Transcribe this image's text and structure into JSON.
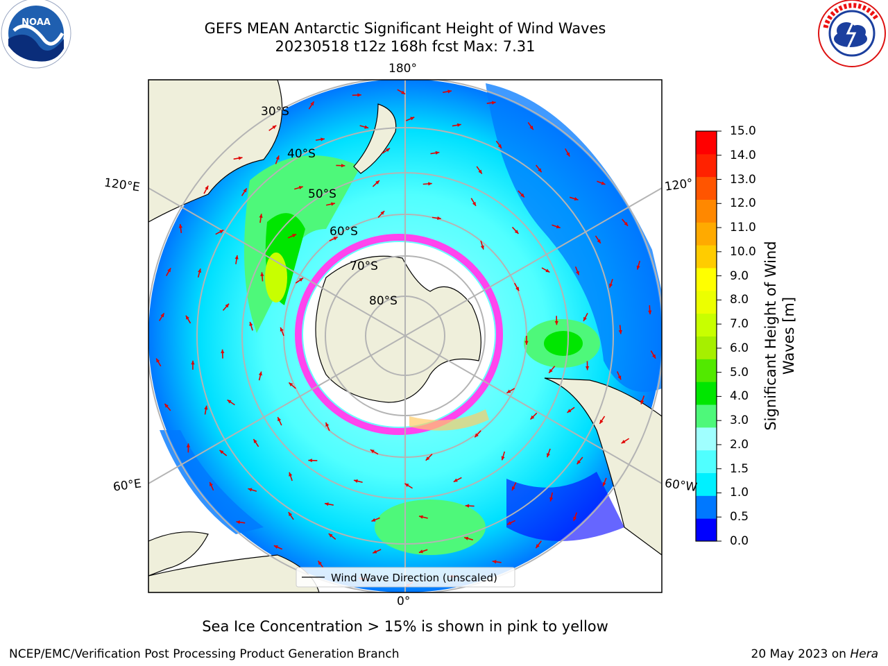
{
  "title": {
    "line1": "GEFS MEAN Antarctic Significant Height of Wind Waves",
    "line2": "20230518 t12z 168h fcst   Max: 7.31"
  },
  "logos": {
    "left": "noaa-logo",
    "right": "nws-logo"
  },
  "map": {
    "projection": "south-polar-stereographic",
    "lat_labels": [
      "30°S",
      "40°S",
      "50°S",
      "60°S",
      "70°S",
      "80°S"
    ],
    "lon_labels": {
      "top": "180°",
      "bottom": "0°",
      "upper_left": "120°E",
      "lower_left": "60°E",
      "upper_right": "120°",
      "lower_right": "60°W"
    },
    "legend_label": "Wind Wave Direction (unscaled)"
  },
  "colorbar": {
    "label_line1": "Significant Height of Wind",
    "label_line2": "Waves [m]",
    "ticks": [
      "15.0",
      "14.0",
      "13.0",
      "12.0",
      "11.0",
      "10.0",
      "9.0",
      "8.0",
      "7.0",
      "6.0",
      "5.0",
      "4.0",
      "3.0",
      "2.0",
      "1.5",
      "1.0",
      "0.5",
      "0.0"
    ],
    "colors": [
      "#0000ff",
      "#0078ff",
      "#00f0ff",
      "#50ffff",
      "#a0ffff",
      "#4ef87a",
      "#00e600",
      "#52e900",
      "#a6ef00",
      "#c8ff00",
      "#ecff00",
      "#ffff00",
      "#ffcc00",
      "#ffaa00",
      "#ff8800",
      "#ff5500",
      "#ff2200",
      "#ff0000"
    ]
  },
  "caption": "Sea Ice Concentration > 15% is shown in pink to yellow",
  "footer": {
    "left": "NCEP/EMC/Verification Post Processing Product Generation Branch",
    "right_prefix": "20 May 2023 on ",
    "right_machine": "Hera"
  }
}
